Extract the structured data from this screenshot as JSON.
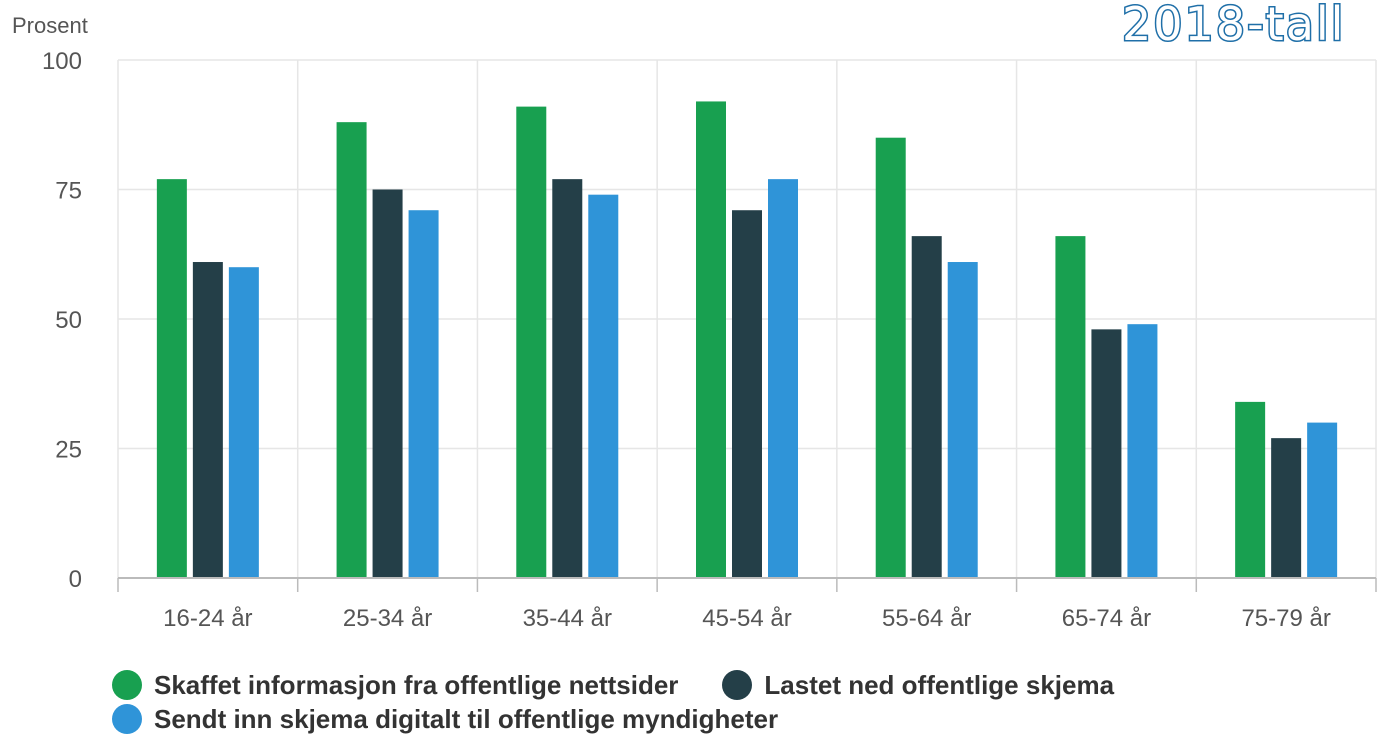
{
  "chart_data": {
    "type": "bar",
    "ylabel": "Prosent",
    "ylim": [
      0,
      100
    ],
    "yticks": [
      0,
      25,
      50,
      75,
      100
    ],
    "grid": true,
    "legend_position": "bottom",
    "corner_text": "2018-tall",
    "categories": [
      "16-24 år",
      "25-34 år",
      "35-44 år",
      "45-54 år",
      "55-64 år",
      "65-74 år",
      "75-79 år"
    ],
    "series": [
      {
        "name": "Skaffet informasjon fra offentlige nettsider",
        "color": "#18a050",
        "values": [
          77,
          88,
          91,
          92,
          85,
          66,
          34
        ]
      },
      {
        "name": "Lastet ned offentlige skjema",
        "color": "#243f48",
        "values": [
          61,
          75,
          77,
          71,
          66,
          48,
          27
        ]
      },
      {
        "name": "Sendt inn skjema digitalt til offentlige myndigheter",
        "color": "#2f94d8",
        "values": [
          60,
          71,
          74,
          77,
          61,
          49,
          30
        ]
      }
    ]
  }
}
